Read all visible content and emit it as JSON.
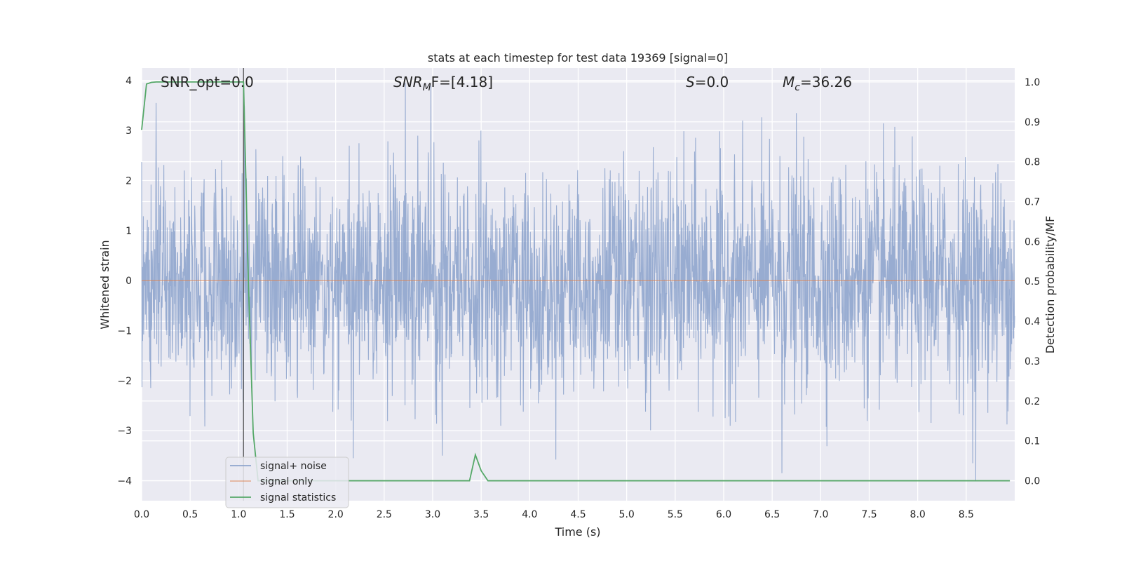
{
  "chart_data": {
    "type": "line",
    "title": "stats at each timestep for test data 19369 [signal=0]",
    "xlabel": "Time (s)",
    "ylabel": "Whitened strain",
    "y2label": "Detection probability/MF",
    "xlim": [
      0.0,
      9.0
    ],
    "ylim": [
      -4.4,
      4.25
    ],
    "y2lim": [
      -0.05,
      1.035
    ],
    "xticks": [
      "0.0",
      "0.5",
      "1.0",
      "1.5",
      "2.0",
      "2.5",
      "3.0",
      "3.5",
      "4.0",
      "4.5",
      "5.0",
      "5.5",
      "6.0",
      "6.5",
      "7.0",
      "7.5",
      "8.0",
      "8.5"
    ],
    "yticks": [
      "4",
      "3",
      "2",
      "1",
      "0",
      "−1",
      "−2",
      "−3",
      "−4"
    ],
    "y2ticks": [
      "1.0",
      "0.9",
      "0.8",
      "0.7",
      "0.6",
      "0.5",
      "0.4",
      "0.3",
      "0.2",
      "0.1",
      "0.0"
    ],
    "grid": true,
    "legend_position": "lower-left",
    "annotations": {
      "snr_opt": "SNR_opt=0.0",
      "snr_mf_main": "SNR",
      "snr_mf_sub": "M",
      "snr_mf_rest": "F=[4.18]",
      "s_main": "S",
      "s_rest": "=0.0",
      "mc_main": "M",
      "mc_sub": "c",
      "mc_rest": "=36.26"
    },
    "series": [
      {
        "name": "signal+ noise",
        "color": "#8fa5cd",
        "description_values": "whitened noise, roughly gaussian, amplitude range about -4 to 4",
        "y_range": [
          -4.0,
          3.9
        ],
        "y_std": 1.1,
        "notable_peaks": [
          [
            0.15,
            3.55
          ],
          [
            2.72,
            3.95
          ],
          [
            2.98,
            3.9
          ],
          [
            3.1,
            3.55
          ],
          [
            6.75,
            3.35
          ],
          [
            8.6,
            -4.0
          ],
          [
            6.6,
            -3.85
          ],
          [
            3.1,
            -3.5
          ],
          [
            2.18,
            -3.55
          ]
        ]
      },
      {
        "name": "signal only",
        "color": "#dd8452",
        "y_values_constant": 0.0
      },
      {
        "name": "signal statistics",
        "color": "#55a868",
        "axis": "y2",
        "x": [
          0.0,
          0.05,
          0.1,
          0.15,
          0.2,
          0.3,
          0.5,
          0.8,
          1.0,
          1.05,
          1.1,
          1.15,
          1.2,
          1.25,
          1.5,
          2.0,
          2.5,
          3.0,
          3.3,
          3.38,
          3.44,
          3.5,
          3.57,
          3.7,
          4.0,
          5.0,
          6.0,
          7.0,
          8.0,
          8.6,
          8.95
        ],
        "y": [
          0.88,
          0.995,
          0.999,
          1.0,
          1.0,
          1.0,
          1.0,
          1.0,
          1.0,
          1.0,
          0.5,
          0.12,
          0.0,
          0.0,
          0.0,
          0.0,
          0.0,
          0.0,
          0.0,
          0.0,
          0.065,
          0.025,
          0.0,
          0.0,
          0.0,
          0.0,
          0.0,
          0.0,
          0.0,
          0.0,
          0.0
        ]
      }
    ],
    "vertical_marker": {
      "x": 1.05,
      "color": "#555555"
    }
  }
}
